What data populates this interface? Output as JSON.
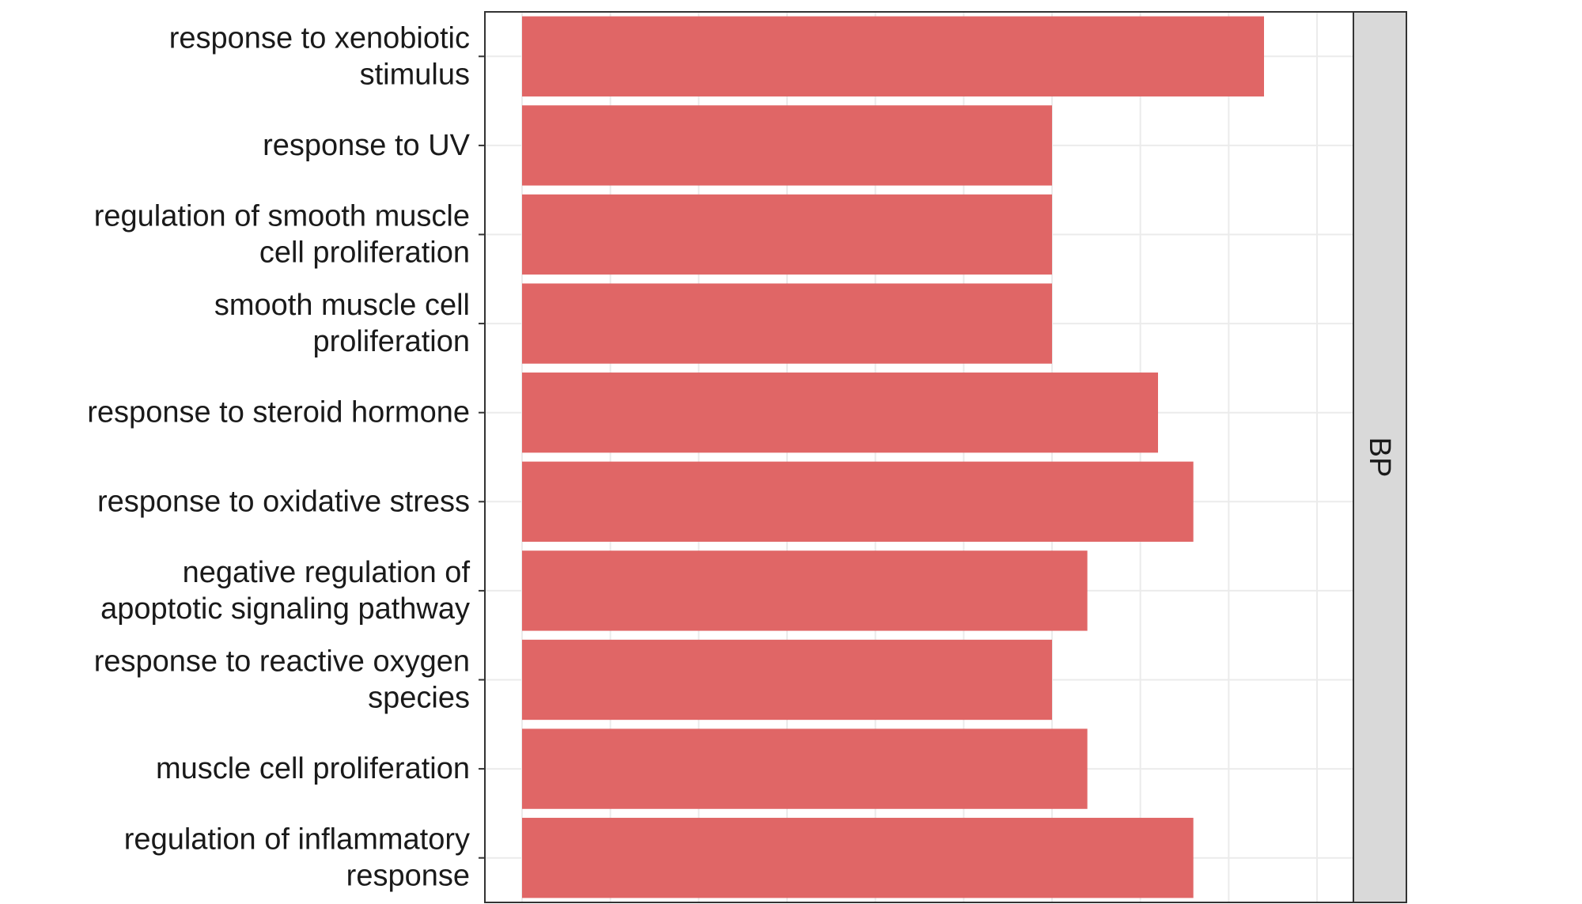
{
  "chart_data": {
    "type": "bar",
    "orientation": "horizontal",
    "facet_label": "BP",
    "categories": [
      [
        "response to xenobiotic",
        "stimulus"
      ],
      [
        "response to UV"
      ],
      [
        "regulation of smooth muscle",
        "cell proliferation"
      ],
      [
        "smooth muscle cell",
        "proliferation"
      ],
      [
        "response to steroid hormone"
      ],
      [
        "response to oxidative stress"
      ],
      [
        "negative regulation of",
        "apoptotic signaling pathway"
      ],
      [
        "response to reactive oxygen",
        "species"
      ],
      [
        "muscle cell proliferation"
      ],
      [
        "regulation of inflammatory",
        "response"
      ]
    ],
    "values": [
      21,
      15,
      15,
      15,
      18,
      19,
      16,
      15,
      16,
      19
    ],
    "xlim": [
      0,
      22.5
    ],
    "colors": {
      "bar": "#E06666",
      "strip": "#D9D9D9",
      "grid": "#EBEBEB",
      "panel_border": "#333333"
    },
    "title": "",
    "xlabel": "",
    "ylabel": ""
  }
}
